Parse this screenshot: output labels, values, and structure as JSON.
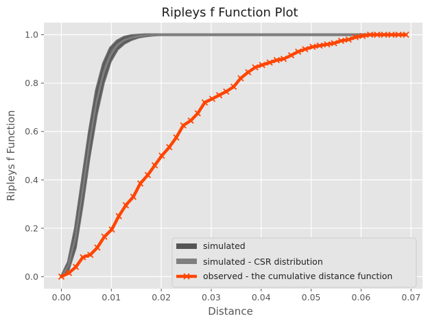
{
  "chart_data": {
    "type": "line",
    "title": "Ripleys f Function Plot",
    "xlabel": "Distance",
    "ylabel": "Ripleys f Function",
    "xlim": [
      -0.0035,
      0.0723
    ],
    "ylim": [
      -0.05,
      1.05
    ],
    "xticks": [
      0.0,
      0.01,
      0.02,
      0.03,
      0.04,
      0.05,
      0.06,
      0.07
    ],
    "xtick_labels": [
      "0.00",
      "0.01",
      "0.02",
      "0.03",
      "0.04",
      "0.05",
      "0.06",
      "0.07"
    ],
    "yticks": [
      0.0,
      0.2,
      0.4,
      0.6,
      0.8,
      1.0
    ],
    "ytick_labels": [
      "0.0",
      "0.2",
      "0.4",
      "0.6",
      "0.8",
      "1.0"
    ],
    "grid": true,
    "legend_position": "lower right",
    "series": [
      {
        "name": "simulated",
        "style": "band",
        "color": "#555555",
        "x": [
          0.0,
          0.0014,
          0.0028,
          0.0042,
          0.0056,
          0.007,
          0.0084,
          0.0098,
          0.0112,
          0.0126,
          0.014,
          0.0154,
          0.0168,
          0.0182,
          0.0196,
          0.021,
          0.0238,
          0.028,
          0.035,
          0.05,
          0.069
        ],
        "upper": [
          0.0,
          0.06,
          0.2,
          0.4,
          0.6,
          0.77,
          0.88,
          0.945,
          0.975,
          0.99,
          0.996,
          0.998,
          1.0,
          1.0,
          1.0,
          1.0,
          1.0,
          1.0,
          1.0,
          1.0,
          1.0
        ],
        "lower": [
          0.0,
          0.03,
          0.12,
          0.3,
          0.5,
          0.67,
          0.8,
          0.89,
          0.94,
          0.965,
          0.98,
          0.99,
          0.995,
          0.998,
          1.0,
          1.0,
          1.0,
          1.0,
          1.0,
          1.0,
          1.0
        ]
      },
      {
        "name": "simulated - CSR distribution",
        "style": "line",
        "color": "#808080",
        "x": [
          0.0,
          0.0014,
          0.0028,
          0.0042,
          0.0056,
          0.007,
          0.0084,
          0.0098,
          0.0112,
          0.0126,
          0.014,
          0.0154,
          0.0168,
          0.0182,
          0.0196,
          0.021,
          0.0238,
          0.028,
          0.035,
          0.05,
          0.069
        ],
        "y": [
          0.0,
          0.045,
          0.16,
          0.35,
          0.55,
          0.72,
          0.84,
          0.915,
          0.957,
          0.978,
          0.988,
          0.994,
          0.998,
          0.999,
          1.0,
          1.0,
          1.0,
          1.0,
          1.0,
          1.0,
          1.0
        ]
      },
      {
        "name": "observed - the cumulative distance function",
        "style": "line-marker",
        "color": "#ff4500",
        "x": [
          0.0,
          0.0015,
          0.0029,
          0.0043,
          0.0058,
          0.0072,
          0.0086,
          0.0101,
          0.0115,
          0.0129,
          0.0144,
          0.0158,
          0.0173,
          0.0187,
          0.0201,
          0.0216,
          0.023,
          0.0244,
          0.0259,
          0.0273,
          0.0287,
          0.0302,
          0.0316,
          0.033,
          0.0345,
          0.0359,
          0.0374,
          0.0388,
          0.0402,
          0.0417,
          0.0431,
          0.0445,
          0.046,
          0.0474,
          0.0488,
          0.0503,
          0.0517,
          0.0532,
          0.0546,
          0.056,
          0.0575,
          0.0589,
          0.0603,
          0.0618,
          0.0632,
          0.0646,
          0.0661,
          0.0675,
          0.069
        ],
        "y": [
          0.0,
          0.015,
          0.04,
          0.08,
          0.09,
          0.12,
          0.165,
          0.195,
          0.25,
          0.295,
          0.33,
          0.385,
          0.42,
          0.46,
          0.5,
          0.535,
          0.575,
          0.625,
          0.645,
          0.675,
          0.72,
          0.735,
          0.75,
          0.765,
          0.785,
          0.82,
          0.845,
          0.865,
          0.875,
          0.885,
          0.895,
          0.9,
          0.915,
          0.93,
          0.94,
          0.95,
          0.955,
          0.96,
          0.965,
          0.975,
          0.98,
          0.99,
          0.995,
          1.0,
          1.0,
          1.0,
          1.0,
          1.0,
          1.0
        ]
      }
    ]
  }
}
